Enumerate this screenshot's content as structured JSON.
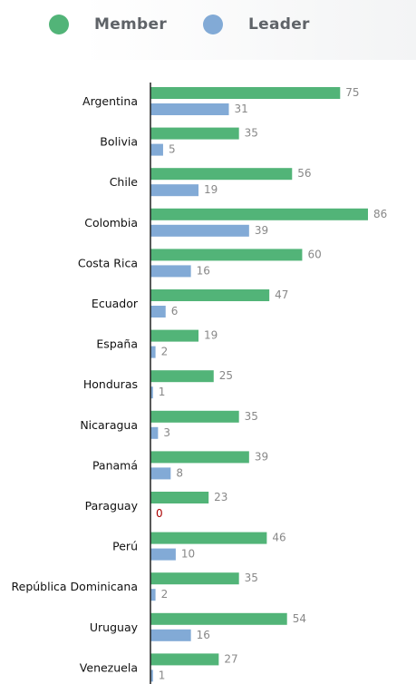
{
  "legend": {
    "member_label": "Member",
    "leader_label": "Leader"
  },
  "colors": {
    "member": "#52b478",
    "leader": "#82aad6",
    "value_text": "#888888",
    "zero_text": "#aa0000",
    "axis": "#222222"
  },
  "chart_data": {
    "type": "bar",
    "orientation": "horizontal",
    "categories": [
      "Argentina",
      "Bolivia",
      "Chile",
      "Colombia",
      "Costa Rica",
      "Ecuador",
      "España",
      "Honduras",
      "Nicaragua",
      "Panamá",
      "Paraguay",
      "Perú",
      "República Dominicana",
      "Uruguay",
      "Venezuela"
    ],
    "series": [
      {
        "name": "Member",
        "values": [
          75,
          35,
          56,
          86,
          60,
          47,
          19,
          25,
          35,
          39,
          23,
          46,
          35,
          54,
          27
        ]
      },
      {
        "name": "Leader",
        "values": [
          31,
          5,
          19,
          39,
          16,
          6,
          2,
          1,
          3,
          8,
          0,
          10,
          2,
          16,
          1
        ]
      }
    ],
    "legend_position": "top-left",
    "grid": false
  }
}
